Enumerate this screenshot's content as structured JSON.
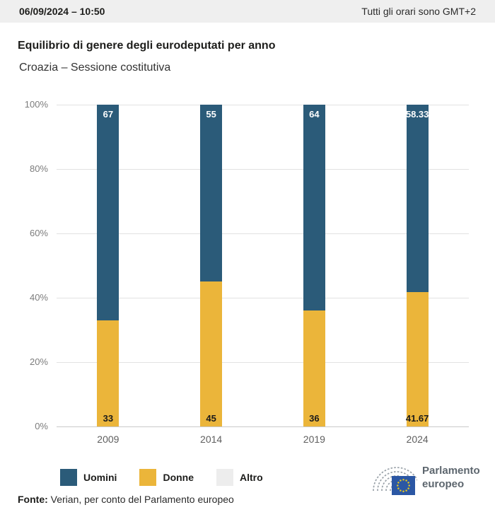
{
  "header": {
    "datetime": "06/09/2024 – 10:50",
    "timezone_note": "Tutti gli orari sono GMT+2"
  },
  "title": "Equilibrio di genere degli eurodeputati per anno",
  "subtitle": "Croazia – Sessione costitutiva",
  "chart_data": {
    "type": "bar",
    "stacked": true,
    "title": "Equilibrio di genere degli eurodeputati per anno",
    "subtitle": "Croazia – Sessione costitutiva",
    "categories": [
      "2009",
      "2014",
      "2019",
      "2024"
    ],
    "series": [
      {
        "name": "Uomini",
        "values": [
          67,
          55,
          64,
          58.33
        ],
        "labels": [
          "67",
          "55",
          "64",
          "58.33"
        ],
        "color": "#2b5b79",
        "label_color": "#ffffff",
        "label_position": "inside-top",
        "stack_index": 1
      },
      {
        "name": "Donne",
        "values": [
          33,
          45,
          36,
          41.67
        ],
        "labels": [
          "33",
          "45",
          "36",
          "41.67"
        ],
        "color": "#ebb53a",
        "label_color": "#1a1a1a",
        "label_position": "inside-bottom",
        "stack_index": 0
      },
      {
        "name": "Altro",
        "values": [
          0,
          0,
          0,
          0
        ],
        "labels": null,
        "color": "#ededed",
        "label_color": "#1a1a1a",
        "label_position": "none",
        "stack_index": 2
      }
    ],
    "ylim": [
      0,
      100
    ],
    "yticks": [
      "0%",
      "20%",
      "40%",
      "60%",
      "80%",
      "100%"
    ],
    "grid": true,
    "legend_position": "bottom-left"
  },
  "legend": {
    "items": [
      {
        "label": "Uomini",
        "color": "#2b5b79"
      },
      {
        "label": "Donne",
        "color": "#ebb53a"
      },
      {
        "label": "Altro",
        "color": "#ededed"
      }
    ]
  },
  "footer": {
    "source_label": "Fonte:",
    "source_text": " Verian, per conto del Parlamento europeo"
  },
  "logo": {
    "line1": "Parlamento",
    "line2": "europeo",
    "flag_blue": "#2b57a4",
    "star_color": "#e3c522",
    "arc_color": "#99a1a8"
  }
}
